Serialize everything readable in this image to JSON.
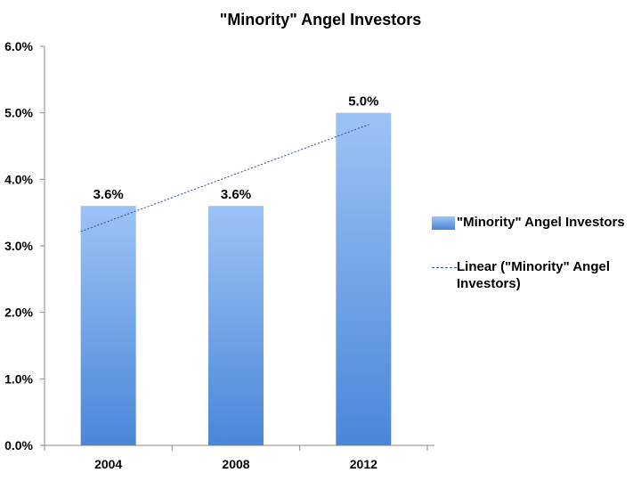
{
  "chart_data": {
    "type": "bar",
    "title": "\"Minority\" Angel Investors",
    "categories": [
      "2004",
      "2008",
      "2012"
    ],
    "series": [
      {
        "name": "\"Minority\" Angel Investors",
        "values": [
          3.6,
          3.6,
          5.0
        ],
        "data_labels": [
          "3.6%",
          "3.6%",
          "5.0%"
        ]
      }
    ],
    "trendline": {
      "name": "Linear (\"Minority\" Angel Investors)",
      "type": "linear",
      "style": "dashed"
    },
    "ylim": [
      0,
      6
    ],
    "y_ticks": [
      "0.0%",
      "1.0%",
      "2.0%",
      "3.0%",
      "4.0%",
      "5.0%",
      "6.0%"
    ],
    "y_tick_values": [
      0,
      1,
      2,
      3,
      4,
      5,
      6
    ],
    "xlabel": "",
    "ylabel": "",
    "grid": false,
    "legend_position": "right",
    "colors": {
      "bar_top": "#9dc3f5",
      "bar_bottom": "#4a86d8",
      "trendline": "#2b4d8a"
    }
  }
}
